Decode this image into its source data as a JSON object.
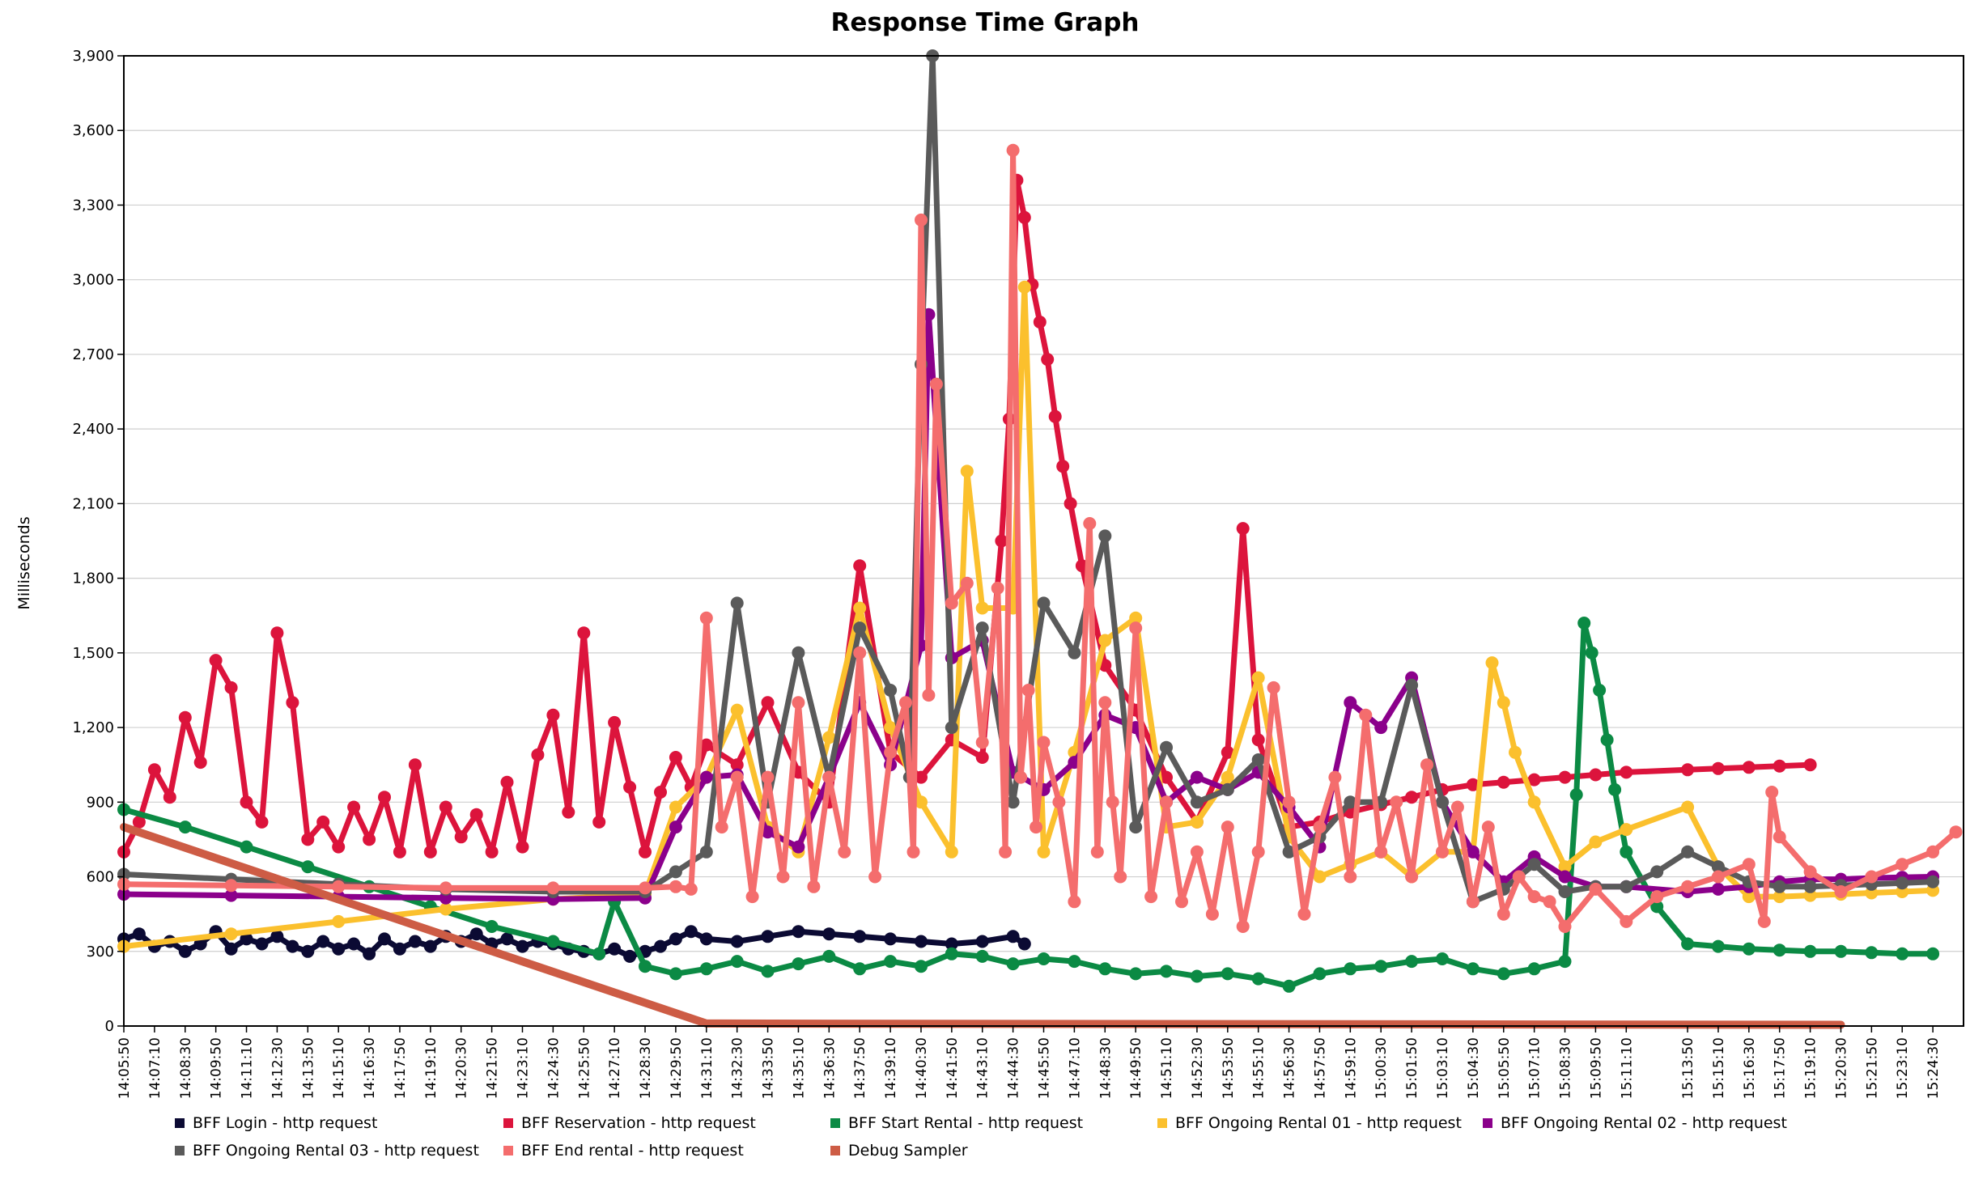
{
  "chart_data": {
    "type": "line",
    "title": "Response Time Graph",
    "xlabel": "",
    "ylabel": "Milliseconds",
    "ylim": [
      0,
      3900
    ],
    "yticks": [
      0,
      300,
      600,
      900,
      1200,
      1500,
      1800,
      2100,
      2400,
      2700,
      3000,
      3300,
      3600,
      3900
    ],
    "ytick_labels": [
      "0",
      "300",
      "600",
      "900",
      "1,200",
      "1,500",
      "1,800",
      "2,100",
      "2,400",
      "2,700",
      "3,000",
      "3,300",
      "3,600",
      "3,900"
    ],
    "x_start": "14:05:50",
    "x_end": "15:25:30",
    "x_tick_labels": [
      "14:05:50",
      "14:07:10",
      "14:08:30",
      "14:09:50",
      "14:11:10",
      "14:12:30",
      "14:13:50",
      "14:15:10",
      "14:16:30",
      "14:17:50",
      "14:19:10",
      "14:20:30",
      "14:21:50",
      "14:23:10",
      "14:24:30",
      "14:25:50",
      "14:27:10",
      "14:28:30",
      "14:29:50",
      "14:31:10",
      "14:32:30",
      "14:33:50",
      "14:35:10",
      "14:36:30",
      "14:37:50",
      "14:39:10",
      "14:40:30",
      "14:41:50",
      "14:43:10",
      "14:44:30",
      "14:45:50",
      "14:47:10",
      "14:48:30",
      "14:49:50",
      "14:51:10",
      "14:52:30",
      "14:53:50",
      "14:55:10",
      "14:56:30",
      "14:57:50",
      "14:59:10",
      "15:00:30",
      "15:01:50",
      "15:03:10",
      "15:04:30",
      "15:05:50",
      "15:07:10",
      "15:08:30",
      "15:09:50",
      "15:11:10",
      "15:13:50",
      "15:15:10",
      "15:16:30",
      "15:17:50",
      "15:19:10",
      "15:20:30",
      "15:21:50",
      "15:23:10",
      "15:24:30"
    ],
    "grid": true,
    "legend_position": "bottom",
    "series": [
      {
        "name": "BFF Login - http request",
        "color": "#0b0a33",
        "x": [
          "14:05:50",
          "14:06:30",
          "14:07:10",
          "14:07:50",
          "14:08:30",
          "14:09:10",
          "14:09:50",
          "14:10:30",
          "14:11:10",
          "14:11:50",
          "14:12:30",
          "14:13:10",
          "14:13:50",
          "14:14:30",
          "14:15:10",
          "14:15:50",
          "14:16:30",
          "14:17:10",
          "14:17:50",
          "14:18:30",
          "14:19:10",
          "14:19:50",
          "14:20:30",
          "14:21:10",
          "14:21:50",
          "14:22:30",
          "14:23:10",
          "14:23:50",
          "14:24:30",
          "14:25:10",
          "14:25:50",
          "14:26:30",
          "14:27:10",
          "14:27:50",
          "14:28:30",
          "14:29:10",
          "14:29:50",
          "14:30:30",
          "14:31:10",
          "14:32:30",
          "14:33:50",
          "14:35:10",
          "14:36:30",
          "14:37:50",
          "14:39:10",
          "14:40:30",
          "14:41:50",
          "14:43:10",
          "14:44:30",
          "14:45:00"
        ],
        "y": [
          350,
          370,
          320,
          340,
          300,
          330,
          380,
          310,
          350,
          330,
          360,
          320,
          300,
          340,
          310,
          330,
          290,
          350,
          310,
          340,
          320,
          360,
          340,
          370,
          330,
          350,
          320,
          340,
          330,
          310,
          300,
          290,
          310,
          280,
          300,
          320,
          350,
          380,
          350,
          340,
          360,
          380,
          370,
          360,
          350,
          340,
          330,
          340,
          360,
          330
        ]
      },
      {
        "name": "BFF Reservation - http request",
        "color": "#dc143c",
        "x": [
          "14:05:50",
          "14:06:30",
          "14:07:10",
          "14:07:50",
          "14:08:30",
          "14:09:10",
          "14:09:50",
          "14:10:30",
          "14:11:10",
          "14:11:50",
          "14:12:30",
          "14:13:10",
          "14:13:50",
          "14:14:30",
          "14:15:10",
          "14:15:50",
          "14:16:30",
          "14:17:10",
          "14:17:50",
          "14:18:30",
          "14:19:10",
          "14:19:50",
          "14:20:30",
          "14:21:10",
          "14:21:50",
          "14:22:30",
          "14:23:10",
          "14:23:50",
          "14:24:30",
          "14:25:10",
          "14:25:50",
          "14:26:30",
          "14:27:10",
          "14:27:50",
          "14:28:30",
          "14:29:10",
          "14:29:50",
          "14:30:30",
          "14:31:10",
          "14:32:30",
          "14:33:50",
          "14:35:10",
          "14:36:30",
          "14:37:50",
          "14:39:10",
          "14:40:30",
          "14:41:50",
          "14:43:10",
          "14:44:00",
          "14:44:20",
          "14:44:40",
          "14:45:00",
          "14:45:20",
          "14:45:40",
          "14:46:00",
          "14:46:20",
          "14:46:40",
          "14:47:00",
          "14:47:30",
          "14:48:30",
          "14:49:50",
          "14:51:10",
          "14:52:30",
          "14:53:50",
          "14:54:30",
          "14:55:10",
          "14:56:30",
          "14:57:50",
          "14:59:10",
          "15:00:30",
          "15:01:50",
          "15:03:10",
          "15:04:30",
          "15:05:50",
          "15:07:10",
          "15:08:30",
          "15:09:50",
          "15:11:10",
          "15:13:50",
          "15:15:10",
          "15:16:30",
          "15:17:50",
          "15:19:10"
        ],
        "y": [
          700,
          820,
          1030,
          920,
          1240,
          1060,
          1470,
          1360,
          900,
          820,
          1580,
          1300,
          750,
          820,
          720,
          880,
          750,
          920,
          700,
          1050,
          700,
          880,
          760,
          850,
          700,
          980,
          720,
          1090,
          1250,
          860,
          1580,
          820,
          1220,
          960,
          700,
          940,
          1080,
          960,
          1130,
          1050,
          1300,
          1020,
          900,
          1850,
          1100,
          1000,
          1150,
          1080,
          1950,
          2440,
          3400,
          3250,
          2980,
          2830,
          2680,
          2450,
          2250,
          2100,
          1850,
          1450,
          1270,
          1000,
          820,
          1100,
          2000,
          1150,
          800,
          820,
          860,
          890,
          920,
          950,
          970,
          980,
          990,
          1000,
          1010,
          1020,
          1030,
          1035,
          1040,
          1045,
          1050
        ]
      },
      {
        "name": "BFF Start Rental - http request",
        "color": "#0b8a44",
        "x": [
          "14:05:50",
          "14:08:30",
          "14:11:10",
          "14:13:50",
          "14:16:30",
          "14:19:10",
          "14:21:50",
          "14:24:30",
          "14:26:30",
          "14:27:10",
          "14:28:30",
          "14:29:50",
          "14:31:10",
          "14:32:30",
          "14:33:50",
          "14:35:10",
          "14:36:30",
          "14:37:50",
          "14:39:10",
          "14:40:30",
          "14:41:50",
          "14:43:10",
          "14:44:30",
          "14:45:50",
          "14:47:10",
          "14:48:30",
          "14:49:50",
          "14:51:10",
          "14:52:30",
          "14:53:50",
          "14:55:10",
          "14:56:30",
          "14:57:50",
          "14:59:10",
          "15:00:30",
          "15:01:50",
          "15:03:10",
          "15:04:30",
          "15:05:50",
          "15:07:10",
          "15:08:30",
          "15:09:00",
          "15:09:20",
          "15:09:40",
          "15:10:00",
          "15:10:20",
          "15:10:40",
          "15:11:10",
          "15:12:30",
          "15:13:50",
          "15:15:10",
          "15:16:30",
          "15:17:50",
          "15:19:10",
          "15:20:30",
          "15:21:50",
          "15:23:10",
          "15:24:30"
        ],
        "y": [
          870,
          800,
          720,
          640,
          560,
          480,
          400,
          340,
          290,
          500,
          240,
          210,
          230,
          260,
          220,
          250,
          280,
          230,
          260,
          240,
          290,
          280,
          250,
          270,
          260,
          230,
          210,
          220,
          200,
          210,
          190,
          160,
          210,
          230,
          240,
          260,
          270,
          230,
          210,
          230,
          260,
          930,
          1620,
          1500,
          1350,
          1150,
          950,
          700,
          480,
          330,
          320,
          310,
          305,
          300,
          300,
          295,
          290,
          290
        ]
      },
      {
        "name": "BFF Ongoing Rental 01 - http request",
        "color": "#fbc02d",
        "x": [
          "14:05:50",
          "14:10:30",
          "14:15:10",
          "14:19:50",
          "14:24:30",
          "14:28:30",
          "14:29:50",
          "14:31:10",
          "14:32:30",
          "14:33:50",
          "14:35:10",
          "14:36:30",
          "14:37:50",
          "14:39:10",
          "14:40:30",
          "14:41:50",
          "14:42:30",
          "14:43:10",
          "14:44:30",
          "14:45:00",
          "14:45:50",
          "14:47:10",
          "14:48:30",
          "14:49:50",
          "14:51:10",
          "14:52:30",
          "14:53:50",
          "14:55:10",
          "14:56:30",
          "14:57:50",
          "14:59:10",
          "15:00:30",
          "15:01:50",
          "15:03:10",
          "15:04:30",
          "15:05:20",
          "15:05:50",
          "15:06:20",
          "15:07:10",
          "15:08:30",
          "15:09:50",
          "15:11:10",
          "15:13:50",
          "15:15:10",
          "15:16:30",
          "15:17:50",
          "15:19:10",
          "15:20:30",
          "15:21:50",
          "15:23:10",
          "15:24:30"
        ],
        "y": [
          320,
          370,
          420,
          470,
          510,
          530,
          880,
          1000,
          1270,
          800,
          700,
          1160,
          1680,
          1200,
          900,
          700,
          2230,
          1680,
          1680,
          2970,
          700,
          1100,
          1550,
          1640,
          800,
          820,
          1000,
          1400,
          760,
          600,
          650,
          700,
          600,
          700,
          700,
          1460,
          1300,
          1100,
          900,
          640,
          740,
          790,
          880,
          640,
          520,
          520,
          525,
          530,
          535,
          540,
          545
        ]
      },
      {
        "name": "BFF Ongoing Rental 02 - http request",
        "color": "#8b008b",
        "x": [
          "14:05:50",
          "14:10:30",
          "14:15:10",
          "14:19:50",
          "14:24:30",
          "14:28:30",
          "14:29:50",
          "14:31:10",
          "14:32:30",
          "14:33:50",
          "14:35:10",
          "14:36:30",
          "14:37:50",
          "14:39:10",
          "14:40:30",
          "14:40:50",
          "14:41:50",
          "14:43:10",
          "14:44:30",
          "14:45:50",
          "14:47:10",
          "14:48:30",
          "14:49:50",
          "14:51:10",
          "14:52:30",
          "14:53:50",
          "14:55:10",
          "14:56:30",
          "14:57:50",
          "14:59:10",
          "15:00:30",
          "15:01:50",
          "15:03:10",
          "15:04:30",
          "15:05:50",
          "15:07:10",
          "15:08:30",
          "15:09:50",
          "15:11:10",
          "15:13:50",
          "15:15:10",
          "15:16:30",
          "15:17:50",
          "15:19:10",
          "15:20:30",
          "15:21:50",
          "15:23:10",
          "15:24:30"
        ],
        "y": [
          530,
          525,
          520,
          515,
          510,
          515,
          800,
          1000,
          1010,
          780,
          720,
          1000,
          1300,
          1050,
          1530,
          2860,
          1480,
          1550,
          1020,
          950,
          1060,
          1250,
          1200,
          900,
          1000,
          950,
          1020,
          880,
          720,
          1300,
          1200,
          1400,
          900,
          700,
          580,
          680,
          600,
          560,
          560,
          540,
          550,
          560,
          580,
          590,
          590,
          595,
          598,
          600
        ]
      },
      {
        "name": "BFF Ongoing Rental 03 - http request",
        "color": "#5a5a5a",
        "x": [
          "14:05:50",
          "14:10:30",
          "14:15:10",
          "14:19:50",
          "14:24:30",
          "14:28:30",
          "14:29:50",
          "14:31:10",
          "14:32:30",
          "14:33:50",
          "14:35:10",
          "14:36:30",
          "14:37:50",
          "14:39:10",
          "14:40:00",
          "14:40:30",
          "14:41:00",
          "14:41:50",
          "14:43:10",
          "14:44:30",
          "14:45:50",
          "14:47:10",
          "14:48:30",
          "14:49:50",
          "14:51:10",
          "14:52:30",
          "14:53:50",
          "14:55:10",
          "14:56:30",
          "14:57:50",
          "14:59:10",
          "15:00:30",
          "15:01:50",
          "15:03:10",
          "15:04:30",
          "15:05:50",
          "15:07:10",
          "15:08:30",
          "15:09:50",
          "15:11:10",
          "15:12:30",
          "15:13:50",
          "15:15:10",
          "15:16:30",
          "15:17:50",
          "15:19:10",
          "15:20:30",
          "15:21:50",
          "15:23:10",
          "15:24:30"
        ],
        "y": [
          610,
          590,
          570,
          550,
          540,
          540,
          620,
          700,
          1700,
          900,
          1500,
          1000,
          1600,
          1350,
          1000,
          2660,
          3900,
          1200,
          1600,
          900,
          1700,
          1500,
          1970,
          800,
          1120,
          900,
          950,
          1070,
          700,
          760,
          900,
          900,
          1370,
          900,
          500,
          550,
          650,
          540,
          560,
          560,
          620,
          700,
          640,
          580,
          560,
          560,
          565,
          570,
          575,
          580
        ]
      },
      {
        "name": "BFF End rental - http request",
        "color": "#f46d6d",
        "x": [
          "14:05:50",
          "14:10:30",
          "14:15:10",
          "14:19:50",
          "14:24:30",
          "14:28:30",
          "14:29:50",
          "14:30:30",
          "14:31:10",
          "14:31:50",
          "14:32:30",
          "14:33:10",
          "14:33:50",
          "14:34:30",
          "14:35:10",
          "14:35:50",
          "14:36:30",
          "14:37:10",
          "14:37:50",
          "14:38:30",
          "14:39:10",
          "14:39:50",
          "14:40:10",
          "14:40:30",
          "14:40:50",
          "14:41:10",
          "14:41:50",
          "14:42:30",
          "14:43:10",
          "14:43:50",
          "14:44:10",
          "14:44:30",
          "14:44:50",
          "14:45:10",
          "14:45:30",
          "14:45:50",
          "14:46:30",
          "14:47:10",
          "14:47:50",
          "14:48:10",
          "14:48:30",
          "14:48:50",
          "14:49:10",
          "14:49:50",
          "14:50:30",
          "14:51:10",
          "14:51:50",
          "14:52:30",
          "14:53:10",
          "14:53:50",
          "14:54:30",
          "14:55:10",
          "14:55:50",
          "14:56:30",
          "14:57:10",
          "14:57:50",
          "14:58:30",
          "14:59:10",
          "14:59:50",
          "15:00:30",
          "15:01:10",
          "15:01:50",
          "15:02:30",
          "15:03:10",
          "15:03:50",
          "15:04:30",
          "15:05:10",
          "15:05:50",
          "15:06:30",
          "15:07:10",
          "15:07:50",
          "15:08:30",
          "15:09:50",
          "15:11:10",
          "15:12:30",
          "15:13:50",
          "15:15:10",
          "15:16:30",
          "15:17:10",
          "15:17:30",
          "15:17:50",
          "15:19:10",
          "15:20:30",
          "15:21:50",
          "15:23:10",
          "15:24:30",
          "15:25:30"
        ],
        "y": [
          570,
          565,
          560,
          555,
          555,
          555,
          560,
          550,
          1640,
          800,
          1000,
          520,
          1000,
          600,
          1300,
          560,
          1000,
          700,
          1500,
          600,
          1100,
          1300,
          700,
          3240,
          1330,
          2580,
          1700,
          1780,
          1140,
          1760,
          700,
          3520,
          1000,
          1350,
          800,
          1140,
          900,
          500,
          2020,
          700,
          1300,
          900,
          600,
          1600,
          520,
          900,
          500,
          700,
          450,
          800,
          400,
          700,
          1360,
          900,
          450,
          800,
          1000,
          600,
          1250,
          700,
          900,
          600,
          1050,
          700,
          880,
          500,
          800,
          450,
          600,
          520,
          500,
          400,
          550,
          420,
          520,
          560,
          600,
          650,
          420,
          940,
          760,
          620,
          540,
          600,
          650,
          700,
          780
        ]
      },
      {
        "name": "Debug Sampler",
        "color": "#cd5c45",
        "x": [
          "14:05:50",
          "14:31:10",
          "15:20:30"
        ],
        "y": [
          800,
          10,
          5
        ]
      }
    ]
  }
}
